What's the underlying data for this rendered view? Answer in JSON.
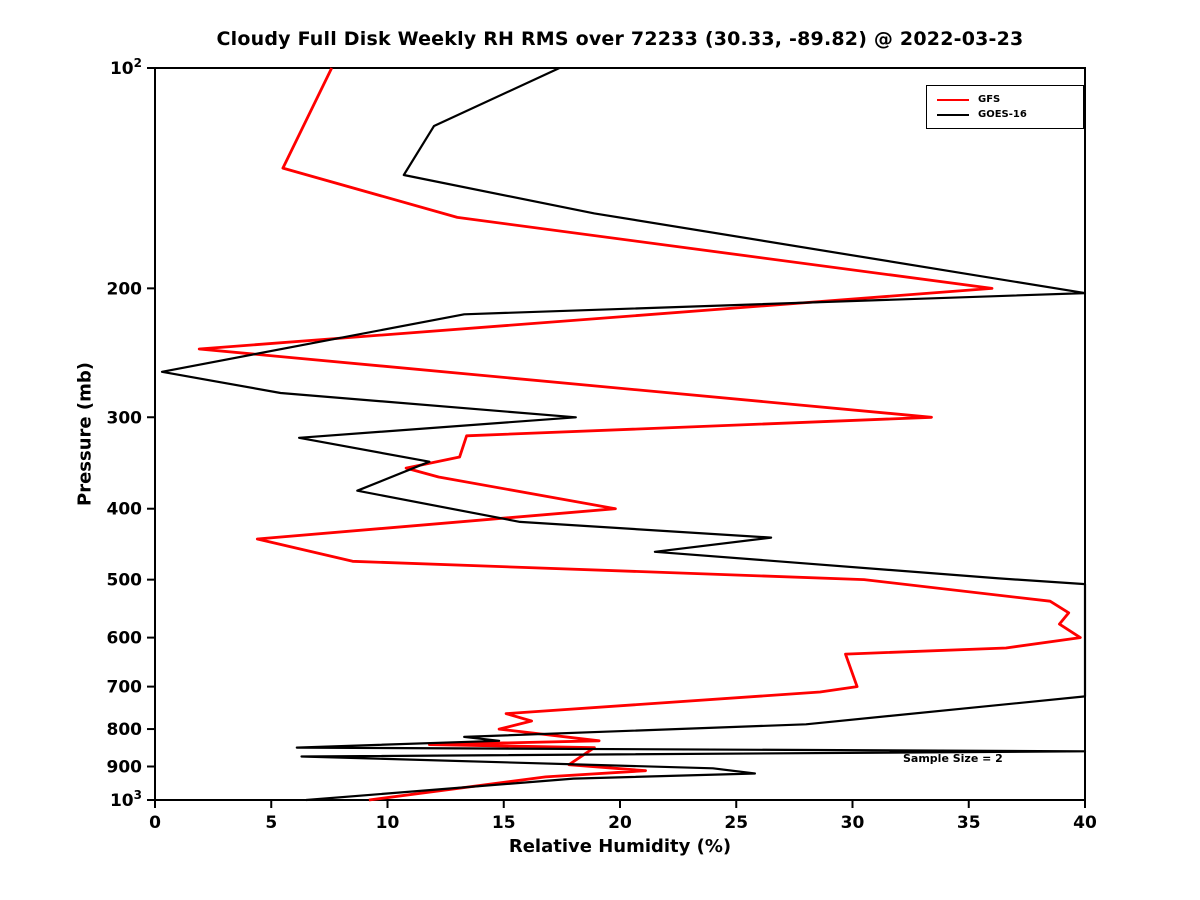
{
  "page": {
    "background": "#ffffff"
  },
  "chart_data": {
    "type": "line",
    "title": "Cloudy Full Disk Weekly RH RMS over 72233 (30.33, -89.82) @ 2022-03-23",
    "xlabel": "Relative Humidity (%)",
    "ylabel": "Pressure (mb)",
    "xlim": [
      0,
      40
    ],
    "ylim": [
      100,
      1000
    ],
    "yscale": "log",
    "y_increases_downward": true,
    "grid": false,
    "xticks": [
      0,
      5,
      10,
      15,
      20,
      25,
      30,
      35,
      40
    ],
    "yticks": [
      {
        "value": 100,
        "label": "10",
        "sup": "2"
      },
      {
        "value": 200,
        "label": "200"
      },
      {
        "value": 300,
        "label": "300"
      },
      {
        "value": 400,
        "label": "400"
      },
      {
        "value": 500,
        "label": "500"
      },
      {
        "value": 600,
        "label": "600"
      },
      {
        "value": 700,
        "label": "700"
      },
      {
        "value": 800,
        "label": "800"
      },
      {
        "value": 900,
        "label": "900"
      },
      {
        "value": 1000,
        "label": "10",
        "sup": "3"
      }
    ],
    "legend": {
      "position": "upper right",
      "entries": [
        {
          "label": "GFS",
          "color": "#ff0000"
        },
        {
          "label": "GOES-16",
          "color": "#000000"
        }
      ]
    },
    "annotation": {
      "text": "Sample Size = 2",
      "x": 32.3,
      "pressure": 880
    },
    "series": [
      {
        "name": "GFS",
        "color": "#ff0000",
        "linewidth": 2.8,
        "points": [
          [
            7.6,
            100
          ],
          [
            5.5,
            137
          ],
          [
            13.0,
            160
          ],
          [
            36.0,
            200
          ],
          [
            1.9,
            242
          ],
          [
            33.4,
            300
          ],
          [
            13.4,
            318
          ],
          [
            13.1,
            340
          ],
          [
            10.8,
            352
          ],
          [
            12.2,
            362
          ],
          [
            19.8,
            400
          ],
          [
            4.4,
            440
          ],
          [
            8.5,
            472
          ],
          [
            30.5,
            500
          ],
          [
            38.5,
            535
          ],
          [
            39.3,
            555
          ],
          [
            38.9,
            575
          ],
          [
            39.8,
            600
          ],
          [
            36.6,
            620
          ],
          [
            29.7,
            632
          ],
          [
            30.2,
            700
          ],
          [
            28.6,
            712
          ],
          [
            15.1,
            762
          ],
          [
            16.2,
            780
          ],
          [
            14.8,
            800
          ],
          [
            19.1,
            830
          ],
          [
            11.8,
            840
          ],
          [
            18.9,
            848
          ],
          [
            17.8,
            895
          ],
          [
            21.1,
            912
          ],
          [
            16.8,
            930
          ],
          [
            9.2,
            1000
          ]
        ]
      },
      {
        "name": "GOES-16",
        "color": "#000000",
        "linewidth": 2.2,
        "points": [
          [
            17.4,
            100
          ],
          [
            12.0,
            120
          ],
          [
            10.7,
            140
          ],
          [
            18.9,
            158
          ],
          [
            40.0,
            203
          ],
          [
            13.3,
            217
          ],
          [
            0.3,
            260
          ],
          [
            5.4,
            278
          ],
          [
            18.1,
            300
          ],
          [
            6.2,
            320
          ],
          [
            11.8,
            345
          ],
          [
            8.7,
            378
          ],
          [
            15.7,
            417
          ],
          [
            26.5,
            438
          ],
          [
            21.5,
            458
          ],
          [
            36.3,
            498
          ],
          [
            40.0,
            507
          ],
          [
            40.0,
            722
          ],
          [
            28.0,
            788
          ],
          [
            13.3,
            820
          ],
          [
            14.8,
            830
          ],
          [
            6.1,
            848
          ],
          [
            40.0,
            858
          ],
          [
            6.3,
            872
          ],
          [
            24.0,
            905
          ],
          [
            25.8,
            920
          ],
          [
            18.0,
            935
          ],
          [
            6.5,
            1000
          ]
        ]
      }
    ]
  }
}
